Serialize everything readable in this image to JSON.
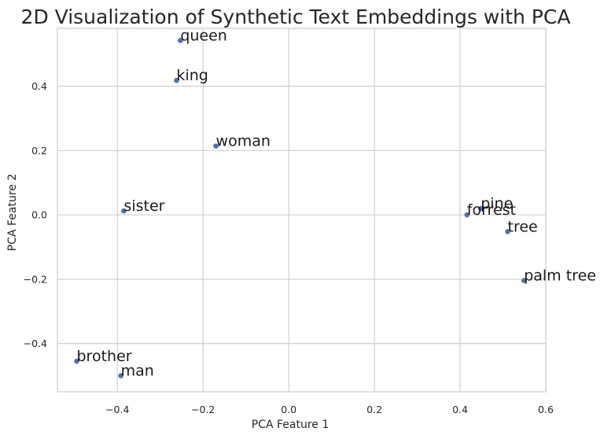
{
  "chart_data": {
    "type": "scatter",
    "title": "2D Visualization of Synthetic Text Embeddings with PCA",
    "xlabel": "PCA Feature 1",
    "ylabel": "PCA Feature 2",
    "xlim": [
      -0.54,
      0.6
    ],
    "ylim": [
      -0.55,
      0.58
    ],
    "xticks": [
      -0.4,
      -0.2,
      0.0,
      0.2,
      0.4,
      0.6
    ],
    "xtick_labels": [
      "−0.4",
      "−0.2",
      "0.0",
      "0.2",
      "0.4",
      "0.6"
    ],
    "yticks": [
      -0.4,
      -0.2,
      0.0,
      0.2,
      0.4
    ],
    "ytick_labels": [
      "−0.4",
      "−0.2",
      "0.0",
      "0.2",
      "0.4"
    ],
    "grid": true,
    "point_color": "#4c72b0",
    "points": [
      {
        "label": "queen",
        "x": -0.253,
        "y": 0.542
      },
      {
        "label": "king",
        "x": -0.262,
        "y": 0.418
      },
      {
        "label": "woman",
        "x": -0.17,
        "y": 0.214
      },
      {
        "label": "sister",
        "x": -0.385,
        "y": 0.012
      },
      {
        "label": "pine",
        "x": 0.448,
        "y": 0.02
      },
      {
        "label": "forrest",
        "x": 0.416,
        "y": 0.0
      },
      {
        "label": "tree",
        "x": 0.511,
        "y": -0.052
      },
      {
        "label": "palm tree",
        "x": 0.549,
        "y": -0.204
      },
      {
        "label": "brother",
        "x": -0.495,
        "y": -0.455
      },
      {
        "label": "man",
        "x": -0.392,
        "y": -0.5
      }
    ]
  }
}
